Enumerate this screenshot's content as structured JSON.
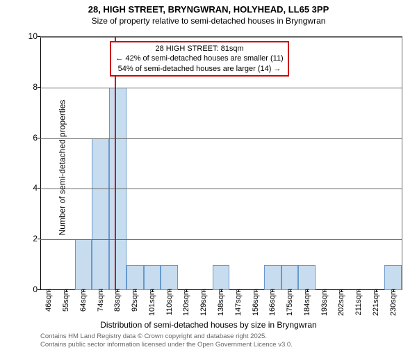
{
  "title": "28, HIGH STREET, BRYNGWRAN, HOLYHEAD, LL65 3PP",
  "subtitle": "Size of property relative to semi-detached houses in Bryngwran",
  "ylabel": "Number of semi-detached properties",
  "xlabel": "Distribution of semi-detached houses by size in Bryngwran",
  "footer_line1": "Contains HM Land Registry data © Crown copyright and database right 2025.",
  "footer_line2": "Contains public sector information licensed under the Open Government Licence v3.0.",
  "chart": {
    "type": "histogram",
    "ylim": [
      0,
      10
    ],
    "ytick_step": 2,
    "yticks": [
      0,
      2,
      4,
      6,
      8,
      10
    ],
    "x_start": 40,
    "x_step": 9.45,
    "x_count": 21,
    "x_unit": "sqm",
    "xticks": [
      46,
      55,
      64,
      74,
      83,
      92,
      101,
      110,
      120,
      129,
      138,
      147,
      156,
      166,
      175,
      184,
      193,
      202,
      211,
      221,
      230
    ],
    "bar_values": [
      0,
      0,
      2,
      6,
      8,
      1,
      1,
      1,
      0,
      0,
      1,
      0,
      0,
      1,
      1,
      1,
      0,
      0,
      0,
      0,
      1
    ],
    "bar_fill": "#c7dcef",
    "bar_border": "#6699cc",
    "marker_x": 81,
    "marker_color": "#cc0000",
    "grid_color": "#666666",
    "axis_color": "#000000",
    "background": "#ffffff",
    "bar_width_ratio": 1.0
  },
  "callout": {
    "line1": "28 HIGH STREET: 81sqm",
    "line2": "← 42% of semi-detached houses are smaller (11)",
    "line3": "54% of semi-detached houses are larger (14) →"
  },
  "title_fontsize": 13,
  "subtitle_fontsize": 12,
  "label_fontsize": 12,
  "tick_fontsize": 11,
  "footer_fontsize": 9.5
}
